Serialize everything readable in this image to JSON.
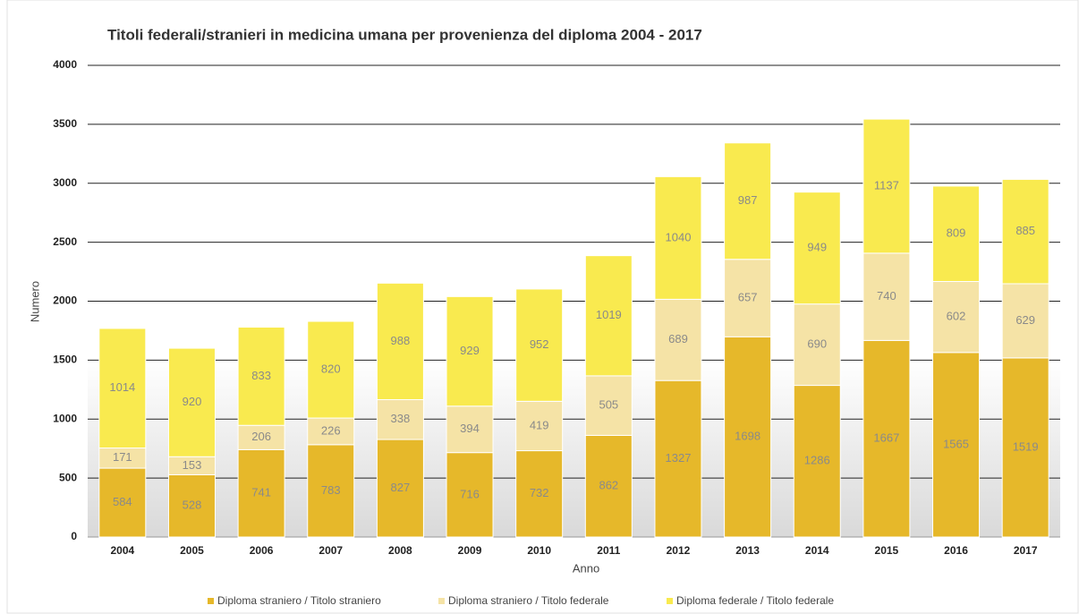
{
  "chart_data": {
    "type": "stacked-bar",
    "title": "Titoli federali/stranieri in medicina umana per provenienza del diploma 2004 - 2017",
    "x_label": "Anno",
    "y_label": "Numero",
    "categories": [
      "2004",
      "2005",
      "2006",
      "2007",
      "2008",
      "2009",
      "2010",
      "2011",
      "2012",
      "2013",
      "2014",
      "2015",
      "2016",
      "2017"
    ],
    "series": [
      {
        "name": "Diploma straniero / Titolo straniero",
        "color": "#e6b82a",
        "values": [
          584,
          528,
          741,
          783,
          827,
          716,
          732,
          862,
          1327,
          1698,
          1286,
          1667,
          1565,
          1519
        ]
      },
      {
        "name": "Diploma straniero / Titolo federale",
        "color": "#f5e3a6",
        "values": [
          171,
          153,
          206,
          226,
          338,
          394,
          419,
          505,
          689,
          657,
          690,
          740,
          602,
          629
        ]
      },
      {
        "name": "Diploma federale / Titolo federale",
        "color": "#f9ea4f",
        "values": [
          1014,
          920,
          833,
          820,
          988,
          929,
          952,
          1019,
          1040,
          987,
          949,
          1137,
          809,
          885
        ]
      }
    ],
    "ylim": [
      0,
      4000
    ],
    "yticks": [
      0,
      500,
      1000,
      1500,
      2000,
      2500,
      3000,
      3500,
      4000
    ],
    "grid": true,
    "legend": "bottom"
  }
}
